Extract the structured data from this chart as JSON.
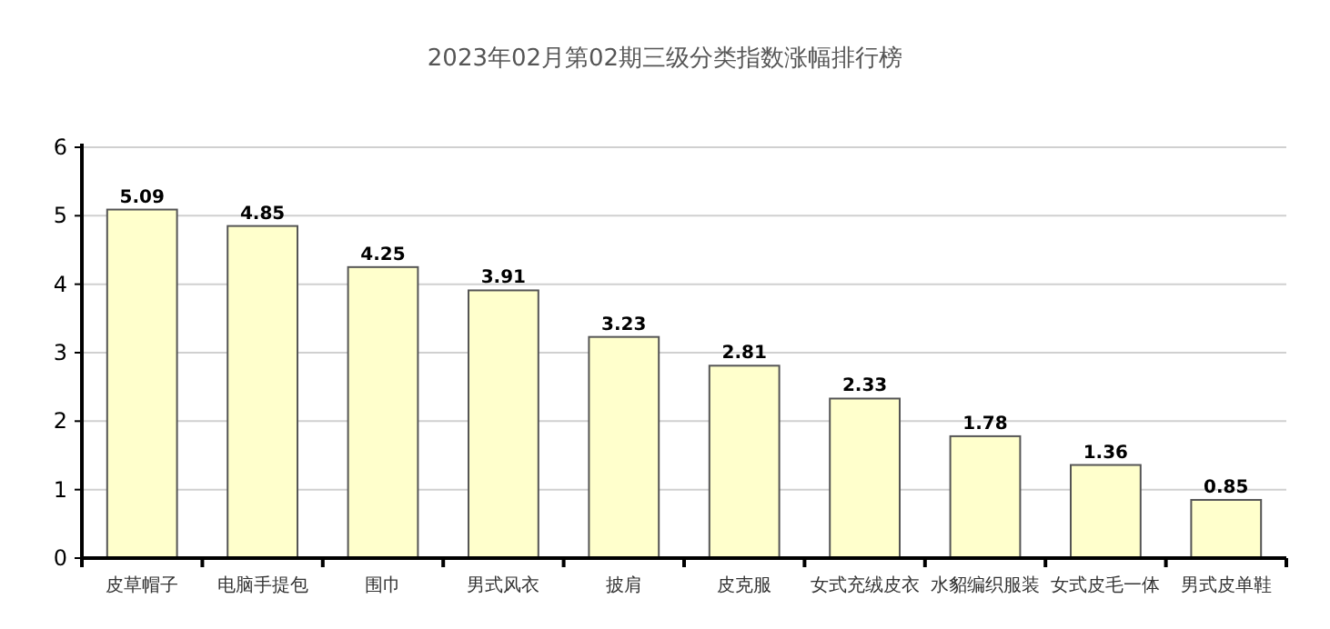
{
  "chart_data": {
    "type": "bar",
    "title": "2023年02月第02期三级分类指数涨幅排行榜",
    "categories": [
      "皮草帽子",
      "电脑手提包",
      "围巾",
      "男式风衣",
      "披肩",
      "皮克服",
      "女式充绒皮衣",
      "水貂编织服装",
      "女式皮毛一体",
      "男式皮单鞋"
    ],
    "values": [
      5.09,
      4.85,
      4.25,
      3.91,
      3.23,
      2.81,
      2.33,
      1.78,
      1.36,
      0.85
    ],
    "color": "#ffffcc",
    "ylim": [
      0,
      6
    ],
    "yticks": [
      0,
      1,
      2,
      3,
      4,
      5,
      6
    ],
    "grid": "y",
    "data_labels": true
  }
}
